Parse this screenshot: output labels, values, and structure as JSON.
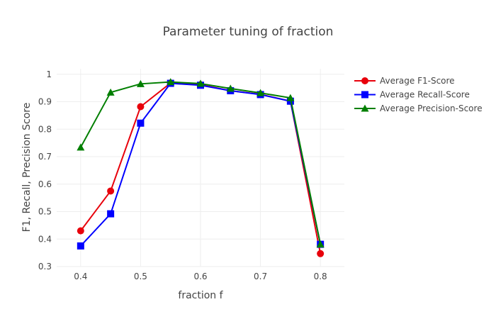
{
  "chart_data": {
    "type": "line",
    "title": "Parameter tuning of fraction",
    "xlabel": "fraction f",
    "ylabel": "F1, Recall, Precision Score",
    "x": [
      0.4,
      0.45,
      0.5,
      0.55,
      0.6,
      0.65,
      0.7,
      0.75,
      0.8
    ],
    "xlim": [
      0.36,
      0.84
    ],
    "ylim": [
      0.3,
      1.02
    ],
    "x_ticks": [
      0.4,
      0.5,
      0.6,
      0.7,
      0.8
    ],
    "x_tick_labels": [
      "0.4",
      "0.5",
      "0.6",
      "0.7",
      "0.8"
    ],
    "y_ticks": [
      0.3,
      0.4,
      0.5,
      0.6,
      0.7,
      0.8,
      0.9,
      1
    ],
    "y_tick_labels": [
      "0.3",
      "0.4",
      "0.5",
      "0.6",
      "0.7",
      "0.8",
      "0.9",
      "1"
    ],
    "grid": true,
    "legend_position": "top-right",
    "series": [
      {
        "name": "Average F1-Score",
        "color": "#e8000b",
        "marker": "circle",
        "values": [
          0.43,
          0.575,
          0.882,
          0.968,
          0.962,
          0.94,
          0.927,
          0.902,
          0.347
        ]
      },
      {
        "name": "Average Recall-Score",
        "color": "#0000ff",
        "marker": "square",
        "values": [
          0.375,
          0.492,
          0.822,
          0.967,
          0.96,
          0.94,
          0.926,
          0.902,
          0.381
        ]
      },
      {
        "name": "Average Precision-Score",
        "color": "#007f00",
        "marker": "triangle",
        "values": [
          0.734,
          0.934,
          0.965,
          0.972,
          0.966,
          0.948,
          0.932,
          0.914,
          0.381
        ]
      }
    ]
  }
}
